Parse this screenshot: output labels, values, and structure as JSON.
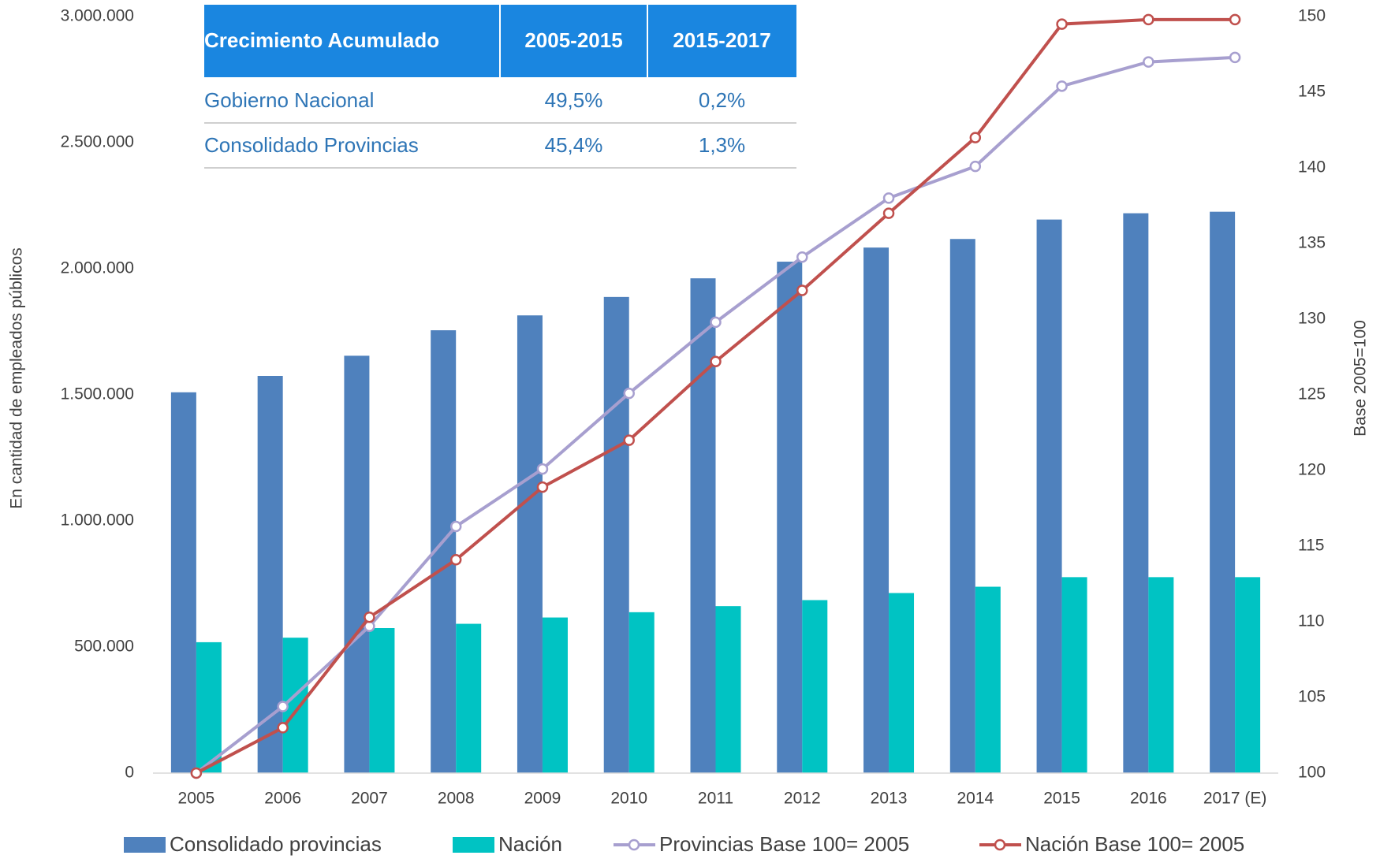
{
  "chart_data": {
    "type": "bar",
    "categories": [
      "2005",
      "2006",
      "2007",
      "2008",
      "2009",
      "2010",
      "2011",
      "2012",
      "2013",
      "2014",
      "2015",
      "2016",
      "2017 (E)"
    ],
    "series": [
      {
        "name": "Consolidado provincias",
        "color": "#4f81bd",
        "values": [
          1510000,
          1575000,
          1655000,
          1756000,
          1815000,
          1888000,
          1962000,
          2028000,
          2084000,
          2118000,
          2195000,
          2220000,
          2226000
        ]
      },
      {
        "name": "Nación",
        "color": "#00c3c3",
        "values": [
          519000,
          537000,
          575000,
          592000,
          617000,
          638000,
          662000,
          686000,
          714000,
          739000,
          777000,
          777000,
          777000
        ]
      },
      {
        "name": "Provincias Base 100= 2005",
        "type": "line",
        "axis": "y2",
        "color": "#a79fcf",
        "values": [
          100,
          104.4,
          109.7,
          116.3,
          120.1,
          125.1,
          129.8,
          134.1,
          138.0,
          140.1,
          145.4,
          147.0,
          147.3
        ]
      },
      {
        "name": "Nación Base 100= 2005",
        "type": "line",
        "axis": "y2",
        "color": "#c0504d",
        "values": [
          100,
          103.0,
          110.3,
          114.1,
          118.9,
          122.0,
          127.2,
          131.9,
          137.0,
          142.0,
          149.5,
          149.8,
          149.8
        ]
      }
    ],
    "ylabel": "En cantidad de empleados públicos",
    "y2label": "Base 2005=100",
    "ylim": [
      0,
      3000000
    ],
    "yticks": [
      0,
      {
        "value": 500000,
        "label": "500.000"
      },
      {
        "value": 1000000,
        "label": "1.000.000"
      },
      {
        "value": 1500000,
        "label": "1.500.000"
      },
      {
        "value": 2000000,
        "label": "2.000.000"
      },
      {
        "value": 2500000,
        "label": "2.500.000"
      },
      {
        "value": 3000000,
        "label": "3.000.000"
      }
    ],
    "y2lim": [
      100,
      150
    ],
    "y2ticks": [
      100,
      105,
      110,
      115,
      120,
      125,
      130,
      135,
      140,
      145,
      150
    ],
    "legend": "bottom"
  },
  "table": {
    "header": [
      "Crecimiento Acumulado",
      "2005-2015",
      "2015-2017"
    ],
    "rows": [
      [
        "Gobierno Nacional",
        "49,5%",
        "0,2%"
      ],
      [
        "Consolidado Provincias",
        "45,4%",
        "1,3%"
      ]
    ]
  }
}
